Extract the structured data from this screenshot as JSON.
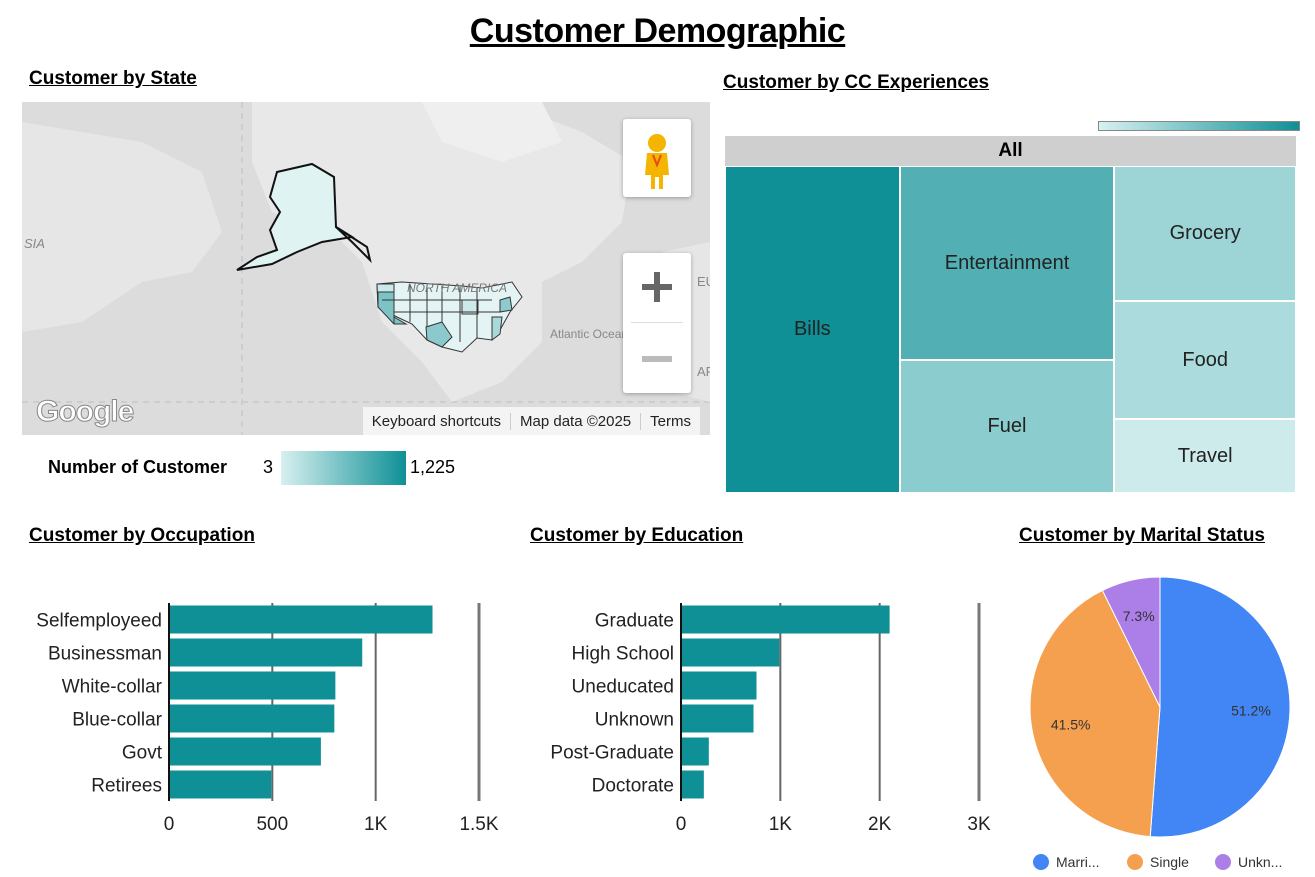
{
  "page": {
    "title": "Customer Demographic"
  },
  "colors": {
    "teal_dark": "#0e9096",
    "teal_light": "#d8f0f0",
    "map_bg": "#dcdcdc"
  },
  "map_section": {
    "title": "Customer by State",
    "labels": {
      "asia": "SIA",
      "north_america": "NORTH AMERICA",
      "atlantic": "Atlantic Ocean",
      "eu": "EU",
      "af": "AF"
    },
    "footer": {
      "shortcuts": "Keyboard shortcuts",
      "map_data": "Map data ©2025",
      "terms": "Terms"
    },
    "logo": "Google",
    "icons": {
      "pegman": "pegman-icon",
      "zoom_in": "zoom-in-icon",
      "zoom_out": "zoom-out-icon"
    },
    "legend": {
      "label": "Number of Customer",
      "min": "3",
      "max": "1,225"
    }
  },
  "cc_section": {
    "title": "Customer by CC Experiences"
  },
  "occupation_section": {
    "title": "Customer by Occupation"
  },
  "education_section": {
    "title": "Customer by Education"
  },
  "marital_section": {
    "title": "Customer by Marital Status"
  },
  "chart_data": [
    {
      "id": "treemap",
      "type": "treemap",
      "root": "All",
      "categories": [
        "Bills",
        "Entertainment",
        "Fuel",
        "Grocery",
        "Food",
        "Travel"
      ],
      "values": [
        2000,
        1460,
        1000,
        860,
        750,
        470
      ]
    },
    {
      "id": "occupation",
      "type": "bar",
      "orientation": "horizontal",
      "categories": [
        "Selfemployeed",
        "Businessman",
        "White-collar",
        "Blue-collar",
        "Govt",
        "Retirees"
      ],
      "values": [
        1275,
        935,
        805,
        800,
        735,
        495
      ],
      "xlim": [
        0,
        1500
      ],
      "ticks": [
        "0",
        "500",
        "1K",
        "1.5K"
      ]
    },
    {
      "id": "education",
      "type": "bar",
      "orientation": "horizontal",
      "categories": [
        "Graduate",
        "High School",
        "Uneducated",
        "Unknown",
        "Post-Graduate",
        "Doctorate"
      ],
      "values": [
        2100,
        990,
        760,
        730,
        280,
        230
      ],
      "xlim": [
        0,
        3000
      ],
      "ticks": [
        "0",
        "1K",
        "2K",
        "3K"
      ]
    },
    {
      "id": "marital",
      "type": "pie",
      "categories": [
        "Married",
        "Single",
        "Unknown"
      ],
      "legend_labels": [
        "Marri...",
        "Single",
        "Unkn..."
      ],
      "values": [
        51.2,
        41.5,
        7.3
      ],
      "labels": [
        "51.2%",
        "41.5%",
        "7.3%"
      ],
      "colors": [
        "#4285f4",
        "#f4a04e",
        "#ab7ee8"
      ]
    }
  ]
}
